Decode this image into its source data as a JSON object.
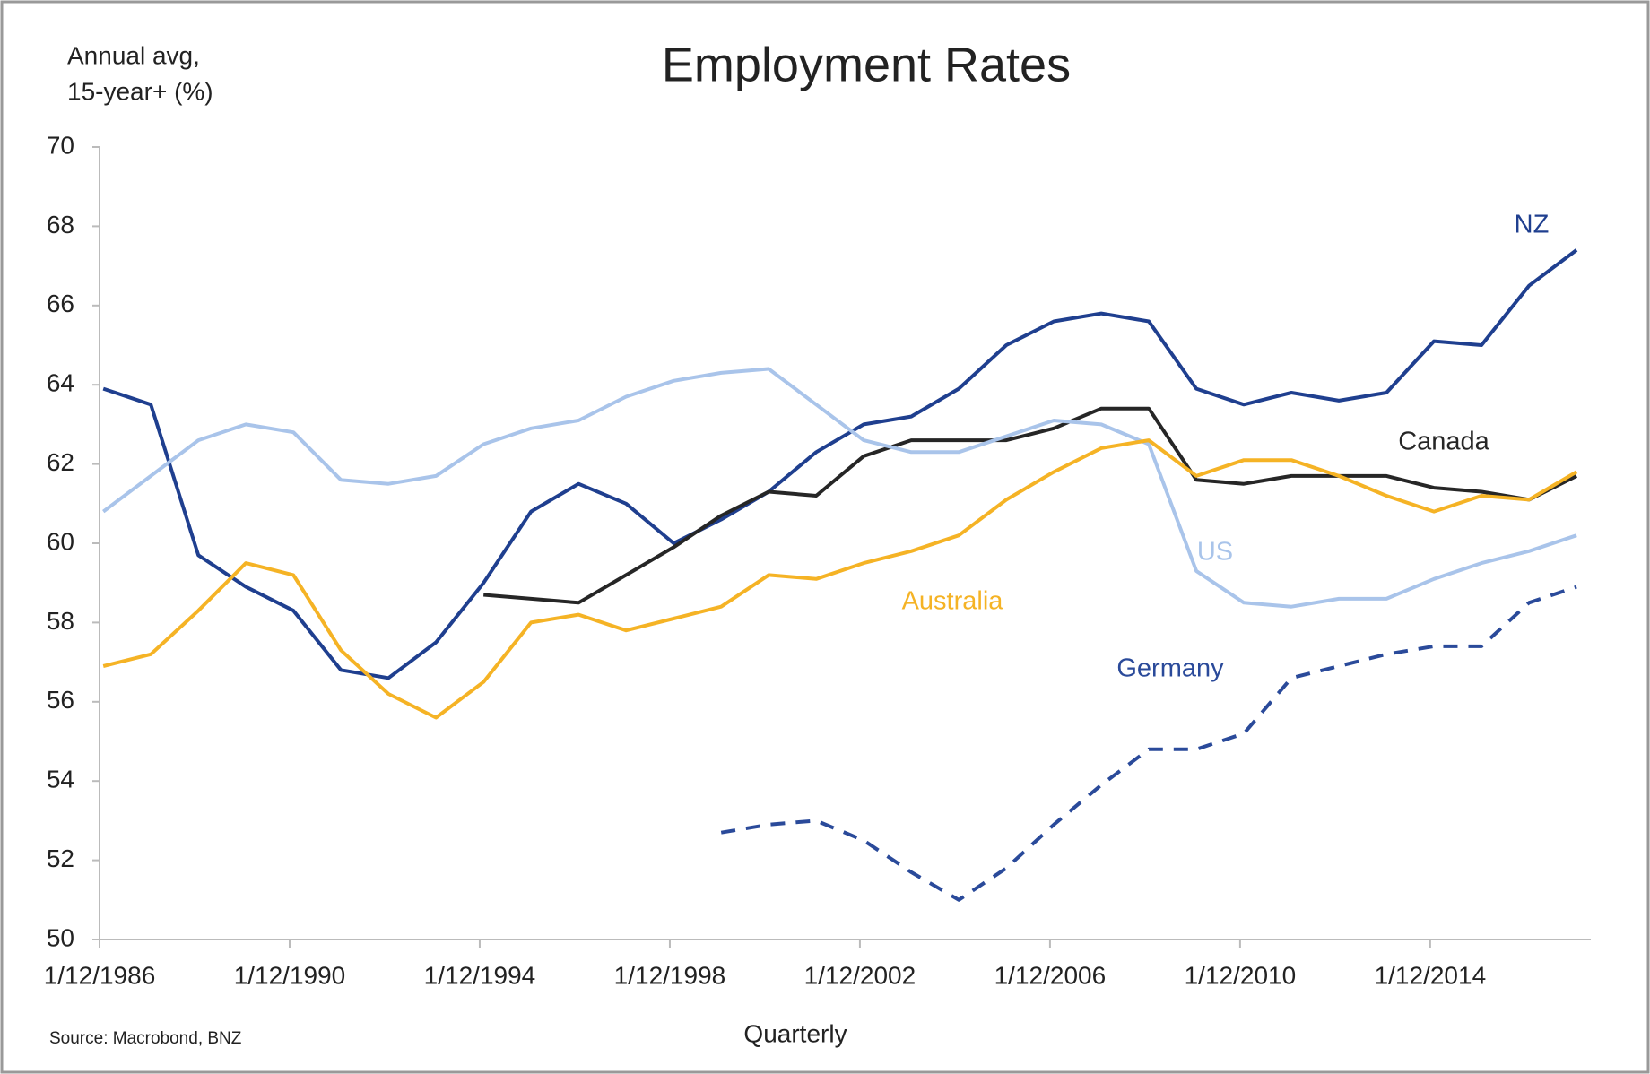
{
  "chart_data": {
    "type": "line",
    "title": "Employment Rates",
    "ylabel": [
      "Annual avg,",
      "15-year+ (%)"
    ],
    "xlabel": "Quarterly",
    "source": "Source: Macrobond, BNZ",
    "x": [
      1987,
      1988,
      1989,
      1990,
      1991,
      1992,
      1993,
      1994,
      1995,
      1996,
      1997,
      1998,
      1999,
      2000,
      2001,
      2002,
      2003,
      2004,
      2005,
      2006,
      2007,
      2008,
      2009,
      2010,
      2011,
      2012,
      2013,
      2014,
      2015,
      2016,
      2017,
      2018
    ],
    "series": [
      {
        "name": "NZ",
        "color": "#1f3f8f",
        "dashed": false,
        "values": [
          63.9,
          63.5,
          59.7,
          58.9,
          58.3,
          56.8,
          56.6,
          57.5,
          59.0,
          60.8,
          61.5,
          61.0,
          60.0,
          60.6,
          61.3,
          62.3,
          63.0,
          63.2,
          63.9,
          65.0,
          65.6,
          65.8,
          65.6,
          63.9,
          63.5,
          63.8,
          63.6,
          63.8,
          65.1,
          65.0,
          66.5,
          67.4
        ]
      },
      {
        "name": "Canada",
        "color": "#262626",
        "dashed": false,
        "values": [
          null,
          null,
          null,
          null,
          null,
          null,
          null,
          null,
          58.7,
          58.6,
          58.5,
          59.2,
          59.9,
          60.7,
          61.3,
          61.2,
          62.2,
          62.6,
          62.6,
          62.6,
          62.9,
          63.4,
          63.4,
          61.6,
          61.5,
          61.7,
          61.7,
          61.7,
          61.4,
          61.3,
          61.1,
          61.7
        ]
      },
      {
        "name": "US",
        "color": "#a9c4ea",
        "dashed": false,
        "values": [
          60.8,
          61.7,
          62.6,
          63.0,
          62.8,
          61.6,
          61.5,
          61.7,
          62.5,
          62.9,
          63.1,
          63.7,
          64.1,
          64.3,
          64.4,
          63.5,
          62.6,
          62.3,
          62.3,
          62.7,
          63.1,
          63.0,
          62.5,
          59.3,
          58.5,
          58.4,
          58.6,
          58.6,
          59.1,
          59.5,
          59.8,
          60.2
        ]
      },
      {
        "name": "Australia",
        "color": "#f5b325",
        "dashed": false,
        "values": [
          56.9,
          57.2,
          58.3,
          59.5,
          59.2,
          57.3,
          56.2,
          55.6,
          56.5,
          58.0,
          58.2,
          57.8,
          58.1,
          58.4,
          59.2,
          59.1,
          59.5,
          59.8,
          60.2,
          61.1,
          61.8,
          62.4,
          62.6,
          61.7,
          62.1,
          62.1,
          61.7,
          61.2,
          60.8,
          61.2,
          61.1,
          61.8
        ]
      },
      {
        "name": "Germany",
        "color": "#2a4a9a",
        "dashed": true,
        "values": [
          null,
          null,
          null,
          null,
          null,
          null,
          null,
          null,
          null,
          null,
          null,
          null,
          null,
          52.7,
          52.9,
          53.0,
          52.5,
          51.7,
          51.0,
          51.8,
          52.9,
          53.9,
          54.8,
          54.8,
          55.2,
          56.6,
          56.9,
          57.2,
          57.4,
          57.4,
          58.5,
          58.9
        ]
      }
    ],
    "xlim": [
      1986.92,
      2018.3
    ],
    "xticks": [
      {
        "value": 1986.92,
        "label": "1/12/1986"
      },
      {
        "value": 1990.92,
        "label": "1/12/1990"
      },
      {
        "value": 1994.92,
        "label": "1/12/1994"
      },
      {
        "value": 1998.92,
        "label": "1/12/1998"
      },
      {
        "value": 2002.92,
        "label": "1/12/2002"
      },
      {
        "value": 2006.92,
        "label": "1/12/2006"
      },
      {
        "value": 2010.92,
        "label": "1/12/2010"
      },
      {
        "value": 2014.92,
        "label": "1/12/2014"
      }
    ],
    "ylim": [
      50,
      70
    ],
    "yticks": [
      50,
      52,
      54,
      56,
      58,
      60,
      62,
      64,
      66,
      68,
      70
    ],
    "grid": false
  }
}
